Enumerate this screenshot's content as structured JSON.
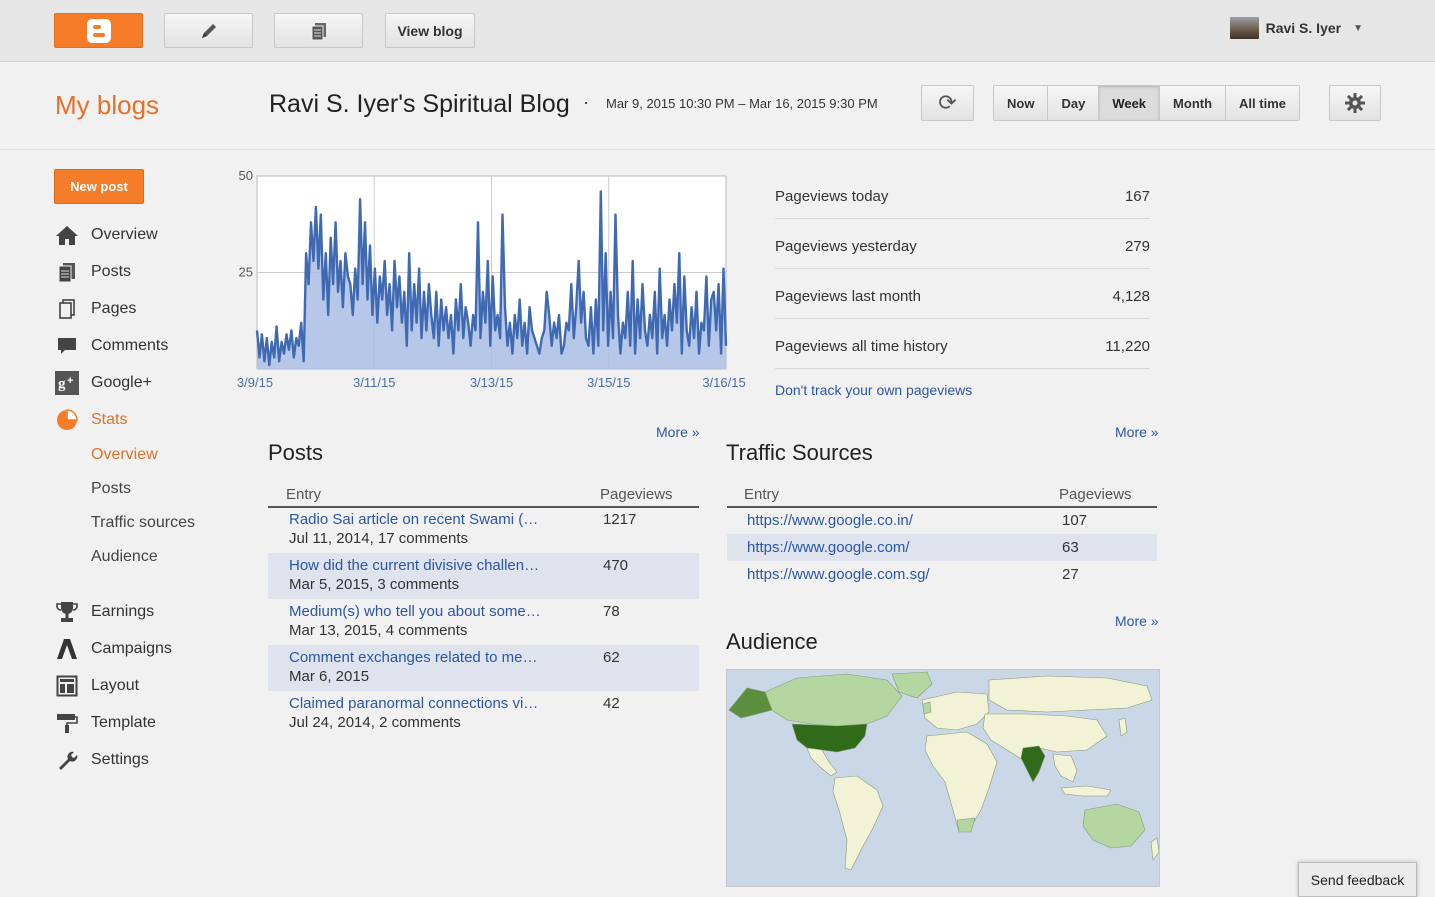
{
  "topbar": {
    "view_blog": "View blog",
    "user_name": "Ravi S. Iyer"
  },
  "header": {
    "my_blogs": "My blogs",
    "blog_title": "Ravi S. Iyer's Spiritual Blog",
    "separator": "·",
    "date_range": "Mar 9, 2015 10:30 PM – Mar 16, 2015 9:30 PM",
    "ranges": [
      "Now",
      "Day",
      "Week",
      "Month",
      "All time"
    ],
    "active_range": "Week"
  },
  "sidebar": {
    "new_post": "New post",
    "items": [
      {
        "label": "Overview",
        "icon": "home-icon"
      },
      {
        "label": "Posts",
        "icon": "posts-icon"
      },
      {
        "label": "Pages",
        "icon": "pages-icon"
      },
      {
        "label": "Comments",
        "icon": "comment-icon"
      },
      {
        "label": "Google+",
        "icon": "google-plus-icon"
      },
      {
        "label": "Stats",
        "icon": "stats-pie-icon"
      }
    ],
    "stats_sub": [
      "Overview",
      "Posts",
      "Traffic sources",
      "Audience"
    ],
    "items2": [
      {
        "label": "Earnings",
        "icon": "trophy-icon"
      },
      {
        "label": "Campaigns",
        "icon": "campaigns-icon"
      },
      {
        "label": "Layout",
        "icon": "layout-icon"
      },
      {
        "label": "Template",
        "icon": "template-roller-icon"
      },
      {
        "label": "Settings",
        "icon": "wrench-icon"
      }
    ]
  },
  "chart_data": {
    "type": "area",
    "y_ticks": [
      "50",
      "25"
    ],
    "x_tick_labels": [
      "3/9/15",
      "3/11/15",
      "3/13/15",
      "3/15/15",
      "3/16/15"
    ],
    "ylim": [
      0,
      50
    ],
    "grid": true,
    "color": "#3f6ab3",
    "values": [
      10,
      3,
      9,
      2,
      8,
      1,
      7,
      3,
      11,
      2,
      7,
      4,
      9,
      5,
      10,
      3,
      8,
      6,
      12,
      2,
      30,
      22,
      38,
      28,
      42,
      26,
      40,
      18,
      30,
      14,
      34,
      22,
      38,
      20,
      28,
      16,
      30,
      24,
      22,
      14,
      26,
      18,
      44,
      22,
      38,
      18,
      32,
      14,
      26,
      12,
      24,
      18,
      28,
      14,
      22,
      10,
      28,
      16,
      24,
      12,
      20,
      6,
      30,
      10,
      22,
      12,
      26,
      8,
      20,
      10,
      22,
      14,
      8,
      20,
      6,
      18,
      10,
      16,
      8,
      14,
      4,
      18,
      10,
      22,
      8,
      16,
      12,
      6,
      14,
      10,
      38,
      8,
      20,
      12,
      28,
      6,
      24,
      10,
      14,
      8,
      40,
      16,
      6,
      12,
      4,
      14,
      8,
      18,
      6,
      12,
      4,
      16,
      10,
      8,
      6,
      4,
      8,
      10,
      20,
      14,
      6,
      12,
      8,
      14,
      4,
      6,
      12,
      10,
      22,
      8,
      16,
      28,
      12,
      20,
      8,
      6,
      16,
      4,
      18,
      6,
      46,
      10,
      30,
      6,
      20,
      8,
      40,
      14,
      4,
      12,
      8,
      20,
      6,
      28,
      4,
      18,
      8,
      22,
      10,
      6,
      14,
      8,
      20,
      4,
      26,
      8,
      14,
      6,
      18,
      10,
      22,
      12,
      30,
      4,
      24,
      10,
      6,
      16,
      8,
      20,
      4,
      12,
      10,
      24,
      6,
      18,
      20,
      10,
      22,
      4,
      26,
      6
    ]
  },
  "summary": [
    {
      "label": "Pageviews today",
      "value": "167"
    },
    {
      "label": "Pageviews yesterday",
      "value": "279"
    },
    {
      "label": "Pageviews last month",
      "value": "4,128"
    },
    {
      "label": "Pageviews all time history",
      "value": "11,220"
    }
  ],
  "dont_track": "Don't track your own pageviews",
  "more_label": "More »",
  "posts": {
    "title": "Posts",
    "col_entry": "Entry",
    "col_pageviews": "Pageviews",
    "rows": [
      {
        "title": "Radio Sai article on recent Swami (…",
        "sub": "Jul 11, 2014, 17 comments",
        "pageviews": "1217"
      },
      {
        "title": "How did the current divisive challen…",
        "sub": "Mar 5, 2015, 3 comments",
        "pageviews": "470"
      },
      {
        "title": "Medium(s) who tell you about some…",
        "sub": "Mar 13, 2015, 4 comments",
        "pageviews": "78"
      },
      {
        "title": "Comment exchanges related to me…",
        "sub": "Mar 6, 2015",
        "pageviews": "62"
      },
      {
        "title": "Claimed paranormal connections vi…",
        "sub": "Jul 24, 2014, 2 comments",
        "pageviews": "42"
      }
    ]
  },
  "traffic": {
    "title": "Traffic Sources",
    "col_entry": "Entry",
    "col_pageviews": "Pageviews",
    "rows": [
      {
        "url": "https://www.google.co.in/",
        "pageviews": "107"
      },
      {
        "url": "https://www.google.com/",
        "pageviews": "63"
      },
      {
        "url": "https://www.google.com.sg/",
        "pageviews": "27"
      }
    ]
  },
  "audience": {
    "title": "Audience",
    "colors": {
      "ocean": "#c9d7e6",
      "none": "#f2f2d6",
      "low": "#b4d6a0",
      "mid": "#5b8f3e",
      "high": "#2f6b18"
    }
  },
  "feedback": "Send feedback"
}
